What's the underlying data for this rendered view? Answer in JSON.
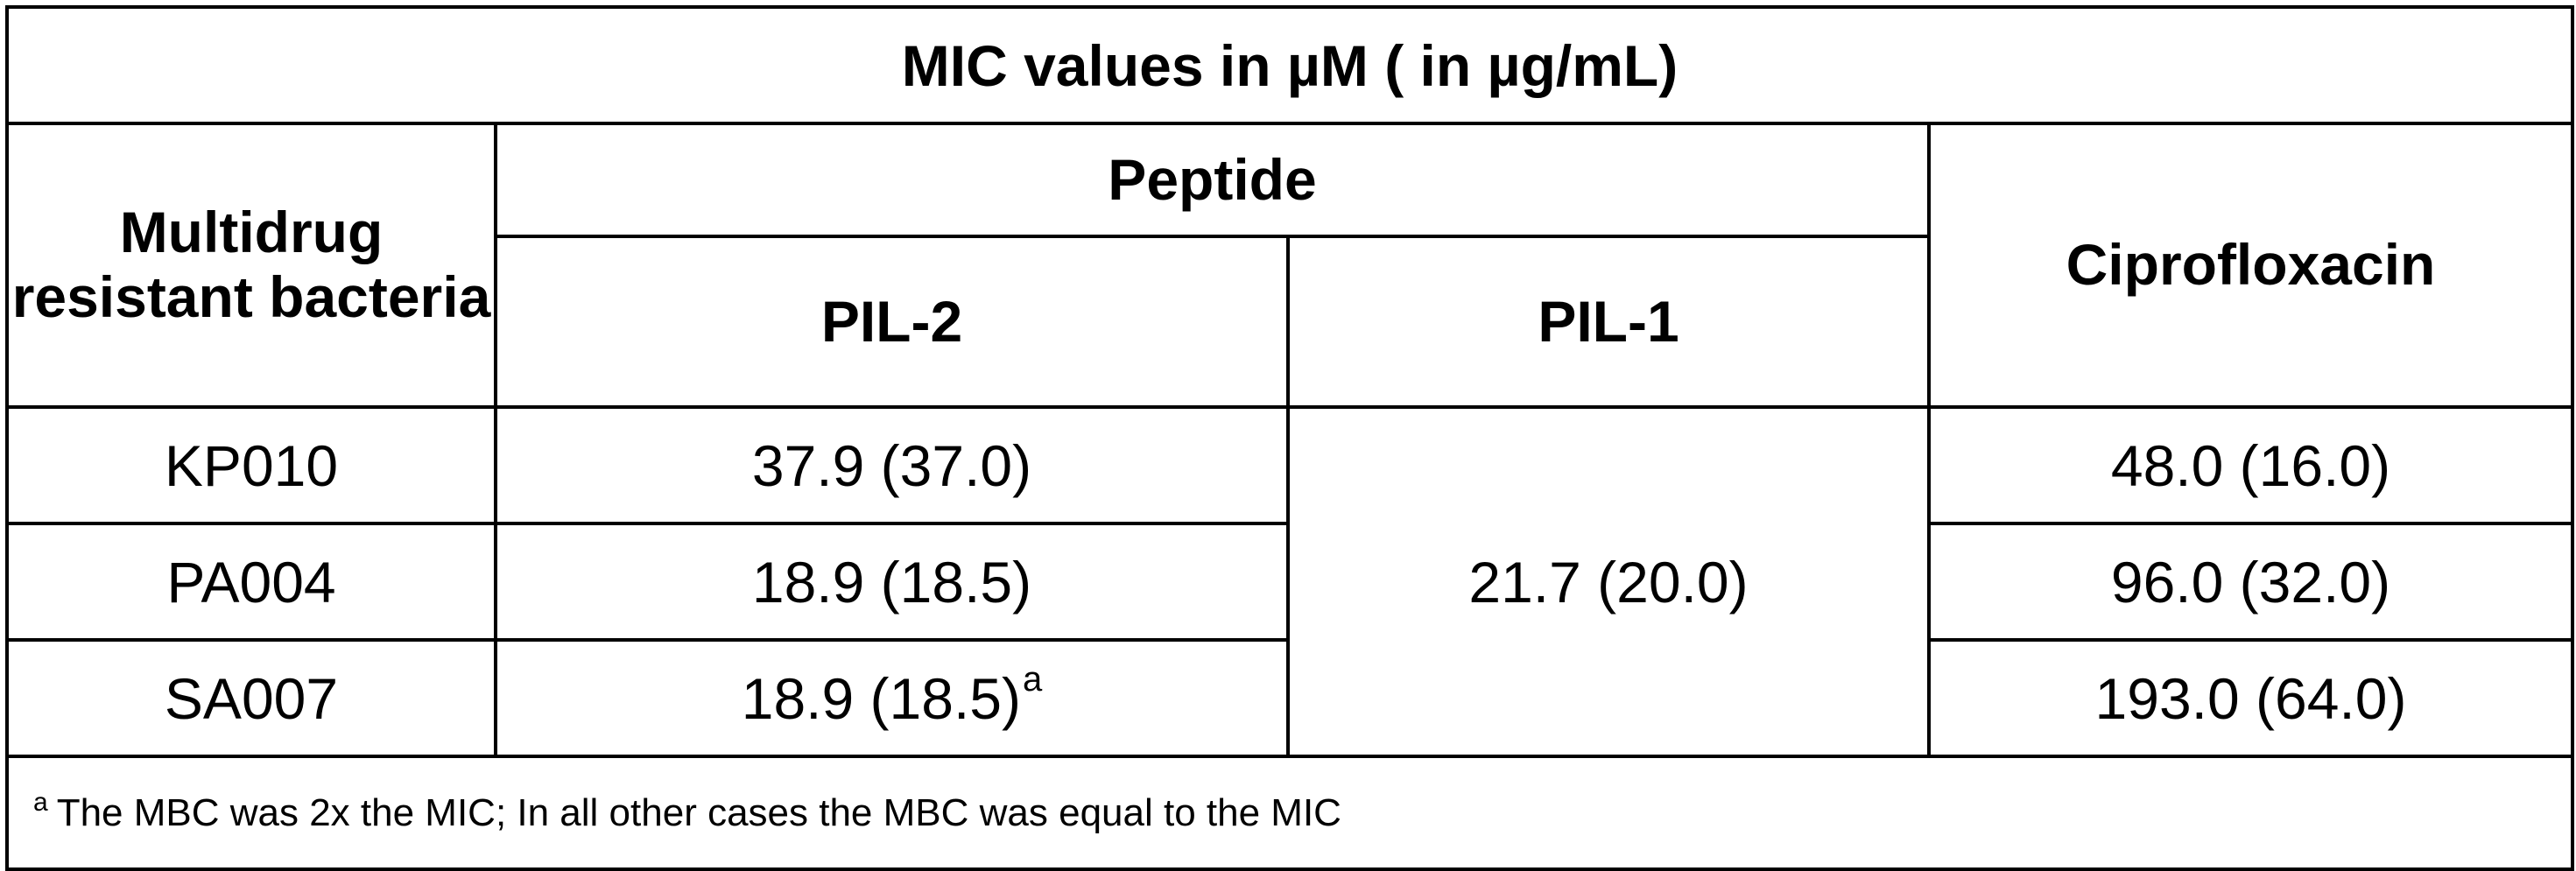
{
  "table": {
    "title": "MIC values in µM ( in µg/mL)",
    "headers": {
      "bacteria": "Multidrug resistant bacteria",
      "peptide_group": "Peptide",
      "pil2": "PIL-2",
      "pil1": "PIL-1",
      "ciprofloxacin": "Ciprofloxacin"
    },
    "rows": [
      {
        "bacteria": "KP010",
        "pil2": "37.9 (37.0)",
        "pil2_mark": "",
        "ciprofloxacin": "48.0 (16.0)"
      },
      {
        "bacteria": "PA004",
        "pil2": "18.9 (18.5)",
        "pil2_mark": "",
        "ciprofloxacin": "96.0 (32.0)"
      },
      {
        "bacteria": "SA007",
        "pil2": "18.9 (18.5)",
        "pil2_mark": "a",
        "ciprofloxacin": "193.0 (64.0)"
      }
    ],
    "pil1_merged_value": "21.7 (20.0)",
    "footnote": {
      "mark": "a",
      "text": "The MBC was 2x the MIC; In all other cases the MBC was equal to the MIC"
    }
  }
}
